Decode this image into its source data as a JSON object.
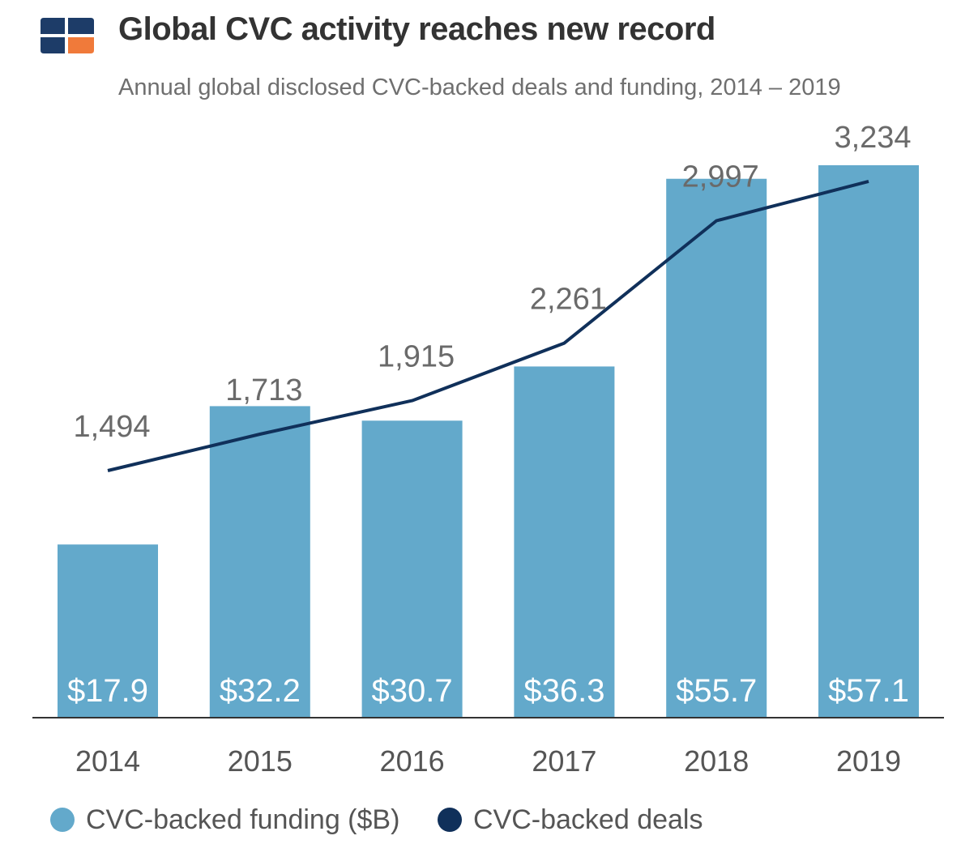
{
  "header": {
    "title": "Global CVC activity reaches new record",
    "subtitle": "Annual global disclosed CVC-backed deals and funding, 2014 – 2019"
  },
  "legend": {
    "funding_label": "CVC-backed funding ($B)",
    "deals_label": "CVC-backed deals"
  },
  "colors": {
    "bar": "#63a9cb",
    "line": "#10305a",
    "logo_dark": "#1d3c68",
    "logo_orange": "#f07a3a"
  },
  "chart_data": {
    "type": "bar",
    "categories": [
      "2014",
      "2015",
      "2016",
      "2017",
      "2018",
      "2019"
    ],
    "series": [
      {
        "name": "CVC-backed funding ($B)",
        "type": "bar",
        "values": [
          17.9,
          32.2,
          30.7,
          36.3,
          55.7,
          57.1
        ],
        "labels": [
          "$17.9",
          "$32.2",
          "$30.7",
          "$36.3",
          "$55.7",
          "$57.1"
        ]
      },
      {
        "name": "CVC-backed deals",
        "type": "line",
        "values": [
          1494,
          1713,
          1915,
          2261,
          2997,
          3234
        ],
        "labels": [
          "1,494",
          "1,713",
          "1,915",
          "2,261",
          "2,997",
          "3,234"
        ]
      }
    ],
    "title": "Global CVC activity reaches new record",
    "subtitle": "Annual global disclosed CVC-backed deals and funding, 2014 – 2019",
    "grid": false,
    "legend": "bottom"
  }
}
